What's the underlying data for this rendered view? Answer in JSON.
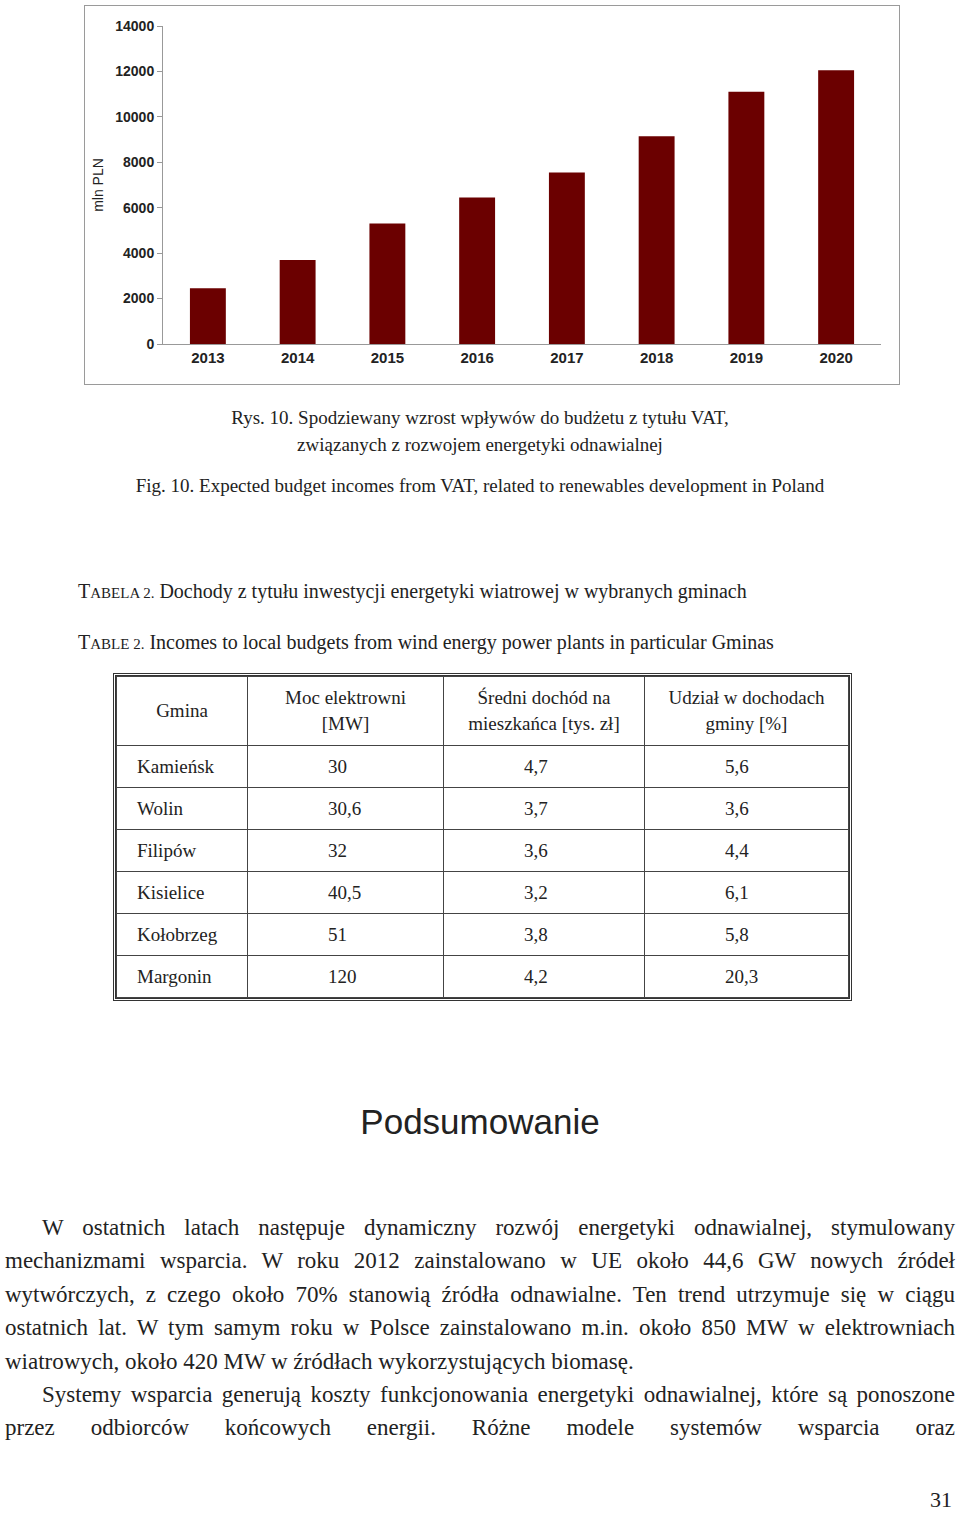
{
  "chart_data": {
    "type": "bar",
    "y_label": "mln PLN",
    "categories": [
      "2013",
      "2014",
      "2015",
      "2016",
      "2017",
      "2018",
      "2019",
      "2020"
    ],
    "values": [
      2450,
      3700,
      5300,
      6450,
      7550,
      9150,
      11100,
      12050
    ],
    "color": "#6b0000",
    "ylim": [
      0,
      14000
    ],
    "yticks": [
      0,
      2000,
      4000,
      6000,
      8000,
      10000,
      12000,
      14000
    ],
    "grid": false
  },
  "figure_caption": {
    "pl": [
      "Rys. 10. Spodziewany wzrost wpływów do budżetu z tytułu VAT,",
      "związanych z rozwojem energetyki odnawialnej"
    ],
    "en": "Fig. 10. Expected budget incomes from VAT, related to renewables development in Poland"
  },
  "table": {
    "label_pl": "TABELA 2.",
    "title_pl": "Dochody z tytułu inwestycji energetyki wiatrowej w wybranych gminach",
    "label_en": "TABLE 2.",
    "title_en": "Incomes to local budgets from wind energy power plants in particular Gminas",
    "header": [
      [
        "Gmina"
      ],
      [
        "Moc elektrowni",
        "[MW]"
      ],
      [
        "Średni dochód na",
        "mieszkańca [tys. zł]"
      ],
      [
        "Udział w dochodach",
        "gminy [%]"
      ]
    ],
    "rows": [
      [
        "Kamieńsk",
        "30",
        "4,7",
        "5,6"
      ],
      [
        "Wolin",
        "30,6",
        "3,7",
        "3,6"
      ],
      [
        "Filipów",
        "32",
        "3,6",
        "4,4"
      ],
      [
        "Kisielice",
        "40,5",
        "3,2",
        "6,1"
      ],
      [
        "Kołobrzeg",
        "51",
        "3,8",
        "5,8"
      ],
      [
        "Margonin",
        "120",
        "4,2",
        "20,3"
      ]
    ]
  },
  "section": {
    "heading": "Podsumowanie",
    "paragraphs": [
      "W ostatnich latach następuje dynamiczny rozwój energetyki odnawialnej, stymulowany mechanizmami wsparcia. W roku 2012 zainstalowano w UE około 44,6 GW nowych źródeł wytwórczych, z czego około 70% stanowią źródła odnawialne. Ten trend utrzymuje się w ciągu ostatnich lat. W tym samym roku w Polsce zainstalowano m.in. około 850 MW w elektrowniach wiatrowych, około 420 MW w źródłach wykorzystujących biomasę.",
      "Systemy wsparcia generują koszty funkcjonowania energetyki odnawialnej, które są ponoszone przez odbiorców końcowych energii. Różne modele systemów wsparcia oraz"
    ]
  },
  "page_number": "31"
}
